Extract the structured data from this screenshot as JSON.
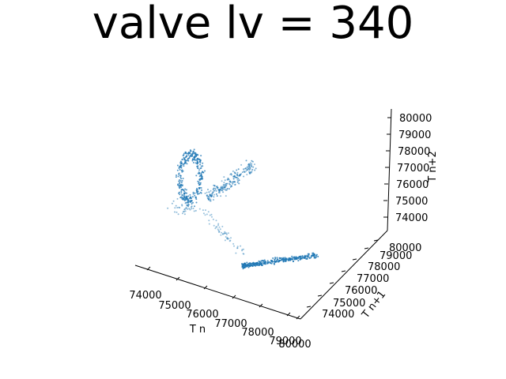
{
  "chart_data": {
    "type": "scatter",
    "projection": "3d",
    "title": "valve lv = 340",
    "xlabel": "T n",
    "ylabel": "T n+1",
    "zlabel": "T n+2",
    "xlim": [
      73000,
      80500
    ],
    "ylim": [
      73000,
      80500
    ],
    "zlim": [
      73000,
      80500
    ],
    "x_ticks": [
      "74000",
      "75000",
      "76000",
      "77000",
      "78000",
      "79000",
      "80000"
    ],
    "y_ticks": [
      "74000",
      "75000",
      "76000",
      "77000",
      "78000",
      "79000",
      "80000"
    ],
    "z_ticks": [
      "74000",
      "75000",
      "76000",
      "77000",
      "78000",
      "79000",
      "80000"
    ],
    "grid": false,
    "point_color": "#1f77b4",
    "series": [
      {
        "clusters": [
          {
            "center": [
              75500,
              75000,
              77600
            ],
            "count": 320
          },
          {
            "center": [
              77800,
              77600,
              77000
            ],
            "count": 200
          },
          {
            "center": [
              79000,
              74500,
              74000
            ],
            "count": 300
          }
        ]
      }
    ]
  }
}
